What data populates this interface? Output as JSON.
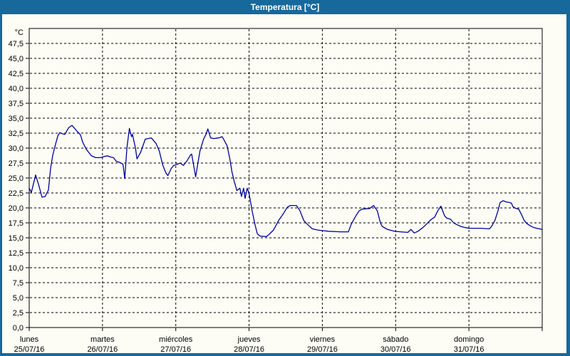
{
  "window": {
    "title": "Temperatura [°C]"
  },
  "colors": {
    "titlebar_bg": "#17699C",
    "window_border": "#17699C",
    "title_text": "#FFFFFF",
    "chart_bg": "#FDFDF6",
    "grid": "#000000",
    "axis": "#000000",
    "curve": "#0000A1"
  },
  "chart_data": {
    "type": "line",
    "title": "Temperatura [°C]",
    "y_unit_label": "°C",
    "y_min": 0,
    "y_max": 50,
    "y_tick_step": 2.5,
    "y_tick_labels": [
      "0,0",
      "2,5",
      "5,0",
      "7,5",
      "10,0",
      "12,5",
      "15,0",
      "17,5",
      "20,0",
      "22,5",
      "25,0",
      "27,5",
      "30,0",
      "32,5",
      "35,0",
      "37,5",
      "40,0",
      "42,5",
      "45,0",
      "47,5"
    ],
    "x_hours_total": 168,
    "x_days": [
      {
        "name": "lunes",
        "date": "25/07/16"
      },
      {
        "name": "martes",
        "date": "26/07/16"
      },
      {
        "name": "miércoles",
        "date": "27/07/16"
      },
      {
        "name": "jueves",
        "date": "28/07/16"
      },
      {
        "name": "viernes",
        "date": "29/07/16"
      },
      {
        "name": "sábado",
        "date": "30/07/16"
      },
      {
        "name": "domingo",
        "date": "31/07/16"
      }
    ],
    "grid": "dashed",
    "legend": "none",
    "series": [
      {
        "name": "Temperatura",
        "color": "#0000A1",
        "points": [
          [
            0,
            23.3
          ],
          [
            0.7,
            22.6
          ],
          [
            2.1,
            25.5
          ],
          [
            3.0,
            24.0
          ],
          [
            4.2,
            21.8
          ],
          [
            5.2,
            21.9
          ],
          [
            6.3,
            23.0
          ],
          [
            7.0,
            26.6
          ],
          [
            7.7,
            28.8
          ],
          [
            8.7,
            30.8
          ],
          [
            9.4,
            32.1
          ],
          [
            10.0,
            32.6
          ],
          [
            10.8,
            32.4
          ],
          [
            11.7,
            32.3
          ],
          [
            12.9,
            33.4
          ],
          [
            14.0,
            33.8
          ],
          [
            15.7,
            32.8
          ],
          [
            16.8,
            32.2
          ],
          [
            17.5,
            31.0
          ],
          [
            18.7,
            29.8
          ],
          [
            20.4,
            28.7
          ],
          [
            21.8,
            28.4
          ],
          [
            23.4,
            28.4
          ],
          [
            24.6,
            28.6
          ],
          [
            25.7,
            28.7
          ],
          [
            26.7,
            28.5
          ],
          [
            27.6,
            28.4
          ],
          [
            28.5,
            27.8
          ],
          [
            29.7,
            27.6
          ],
          [
            30.7,
            27.3
          ],
          [
            31.3,
            24.9
          ],
          [
            32.0,
            30.0
          ],
          [
            32.8,
            33.3
          ],
          [
            33.5,
            31.9
          ],
          [
            33.8,
            32.3
          ],
          [
            34.8,
            30.0
          ],
          [
            35.3,
            28.2
          ],
          [
            36.5,
            29.3
          ],
          [
            38.0,
            31.5
          ],
          [
            40.0,
            31.7
          ],
          [
            41.5,
            30.8
          ],
          [
            42.6,
            29.5
          ],
          [
            43.7,
            27.2
          ],
          [
            44.7,
            25.9
          ],
          [
            45.4,
            25.4
          ],
          [
            46.5,
            26.6
          ],
          [
            47.3,
            27.1
          ],
          [
            48.5,
            27.3
          ],
          [
            49.4,
            27.5
          ],
          [
            50.5,
            27.1
          ],
          [
            51.7,
            27.9
          ],
          [
            52.9,
            28.9
          ],
          [
            53.2,
            29.0
          ],
          [
            54.5,
            25.2
          ],
          [
            55.9,
            29.5
          ],
          [
            57.1,
            31.5
          ],
          [
            57.8,
            32.2
          ],
          [
            58.5,
            33.2
          ],
          [
            59.4,
            31.7
          ],
          [
            60.5,
            31.6
          ],
          [
            62.0,
            31.7
          ],
          [
            63.2,
            31.9
          ],
          [
            64.8,
            30.4
          ],
          [
            65.7,
            28.2
          ],
          [
            66.4,
            26.0
          ],
          [
            67.1,
            24.5
          ],
          [
            68.0,
            22.9
          ],
          [
            69.0,
            23.3
          ],
          [
            69.5,
            21.9
          ],
          [
            70.2,
            23.3
          ],
          [
            70.7,
            21.6
          ],
          [
            71.4,
            23.3
          ],
          [
            72.0,
            22.4
          ],
          [
            73.0,
            19.5
          ],
          [
            74.0,
            17.1
          ],
          [
            74.7,
            15.7
          ],
          [
            75.5,
            15.3
          ],
          [
            77.7,
            15.2
          ],
          [
            78.6,
            15.6
          ],
          [
            80.0,
            16.3
          ],
          [
            81.7,
            17.9
          ],
          [
            83.3,
            19.1
          ],
          [
            84.5,
            20.1
          ],
          [
            85.5,
            20.4
          ],
          [
            87.5,
            20.4
          ],
          [
            88.7,
            19.5
          ],
          [
            89.9,
            17.9
          ],
          [
            91.0,
            17.3
          ],
          [
            92.7,
            16.5
          ],
          [
            94.5,
            16.3
          ],
          [
            96.0,
            16.2
          ],
          [
            98.0,
            16.1
          ],
          [
            102.0,
            16.0
          ],
          [
            104.5,
            16.0
          ],
          [
            105.5,
            17.3
          ],
          [
            107.0,
            18.7
          ],
          [
            108.0,
            19.5
          ],
          [
            109.0,
            19.8
          ],
          [
            111.5,
            19.9
          ],
          [
            112.8,
            20.4
          ],
          [
            114.0,
            19.5
          ],
          [
            115.0,
            17.5
          ],
          [
            115.6,
            16.9
          ],
          [
            117.3,
            16.4
          ],
          [
            119.6,
            16.1
          ],
          [
            121.6,
            16.0
          ],
          [
            124.0,
            15.9
          ],
          [
            125.0,
            16.4
          ],
          [
            126.1,
            15.8
          ],
          [
            127.3,
            16.1
          ],
          [
            128.9,
            16.7
          ],
          [
            130.1,
            17.3
          ],
          [
            131.3,
            17.9
          ],
          [
            132.0,
            18.2
          ],
          [
            132.7,
            18.4
          ],
          [
            133.8,
            19.5
          ],
          [
            134.8,
            20.3
          ],
          [
            136.0,
            18.7
          ],
          [
            136.7,
            18.3
          ],
          [
            138.0,
            18.1
          ],
          [
            139.0,
            17.5
          ],
          [
            139.7,
            17.3
          ],
          [
            141.3,
            16.9
          ],
          [
            142.9,
            16.7
          ],
          [
            144.0,
            16.6
          ],
          [
            147.9,
            16.6
          ],
          [
            150.7,
            16.5
          ],
          [
            151.4,
            16.9
          ],
          [
            152.5,
            17.9
          ],
          [
            153.5,
            19.5
          ],
          [
            154.2,
            20.9
          ],
          [
            155.2,
            21.2
          ],
          [
            156.2,
            21.0
          ],
          [
            157.2,
            20.9
          ],
          [
            157.9,
            20.8
          ],
          [
            158.4,
            20.2
          ],
          [
            159.4,
            19.9
          ],
          [
            160.3,
            19.8
          ],
          [
            161.3,
            18.8
          ],
          [
            162.0,
            18.0
          ],
          [
            162.9,
            17.4
          ],
          [
            164.1,
            17.0
          ],
          [
            165.3,
            16.7
          ],
          [
            167.0,
            16.5
          ],
          [
            168.0,
            16.4
          ]
        ]
      }
    ]
  }
}
